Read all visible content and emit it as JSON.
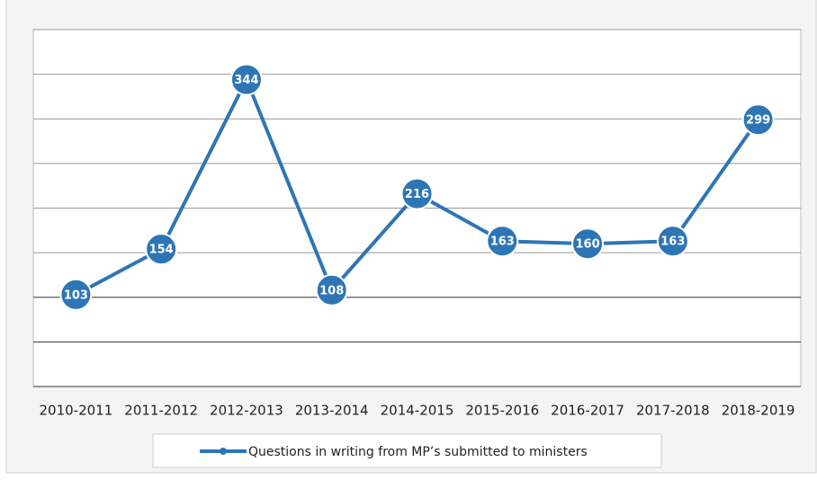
{
  "chart_data": {
    "type": "line",
    "categories": [
      "2010-2011",
      "2011-2012",
      "2012-2013",
      "2013-2014",
      "2014-2015",
      "2015-2016",
      "2016-2017",
      "2017-2018",
      "2018-2019"
    ],
    "series": [
      {
        "name": "Questions in writing from MP’s submitted to ministers",
        "color": "#2e75b6",
        "values": [
          103,
          154,
          344,
          108,
          216,
          163,
          160,
          163,
          299
        ]
      }
    ],
    "ylim": [
      0,
      400
    ],
    "yticks": [
      0,
      50,
      100,
      150,
      200,
      250,
      300,
      350,
      400
    ],
    "grid": true,
    "legend": "bottom"
  }
}
